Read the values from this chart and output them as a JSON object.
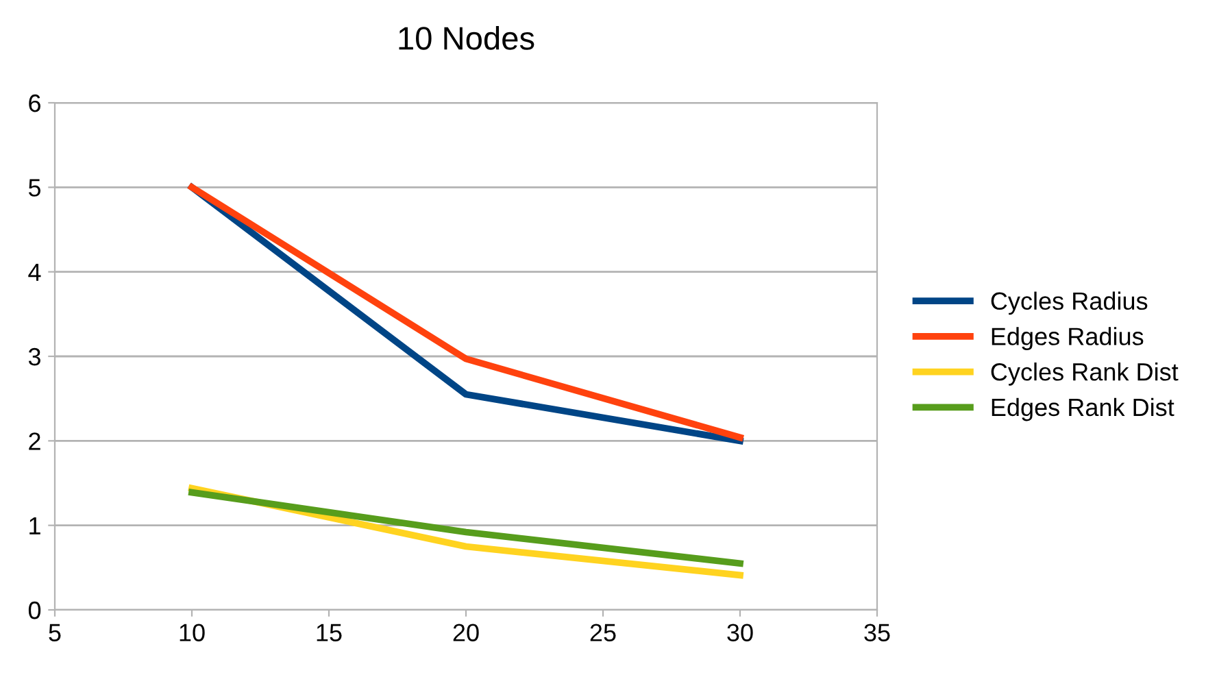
{
  "chart_data": {
    "type": "line",
    "title": "10 Nodes",
    "xlim": [
      5,
      35
    ],
    "xticks": [
      5,
      10,
      15,
      20,
      25,
      30,
      35
    ],
    "ylim": [
      0,
      6
    ],
    "yticks": [
      0,
      1,
      2,
      3,
      4,
      5,
      6
    ],
    "grid": "y",
    "legend": "right",
    "marker": "none",
    "line_style": "solid",
    "series": [
      {
        "name": "Cycles Radius",
        "color": "#004586",
        "x": [
          10,
          20,
          30
        ],
        "values": [
          5,
          2.55,
          2.0
        ]
      },
      {
        "name": "Edges Radius",
        "color": "#ff420e",
        "x": [
          10,
          20,
          30
        ],
        "values": [
          5,
          2.97,
          2.04
        ]
      },
      {
        "name": "Cycles Rank Dist",
        "color": "#ffd320",
        "x": [
          10,
          20,
          30
        ],
        "values": [
          1.44,
          0.75,
          0.41
        ]
      },
      {
        "name": "Edges Rank Dist",
        "color": "#579d1c",
        "x": [
          10,
          20,
          30
        ],
        "values": [
          1.39,
          0.92,
          0.55
        ]
      }
    ]
  }
}
